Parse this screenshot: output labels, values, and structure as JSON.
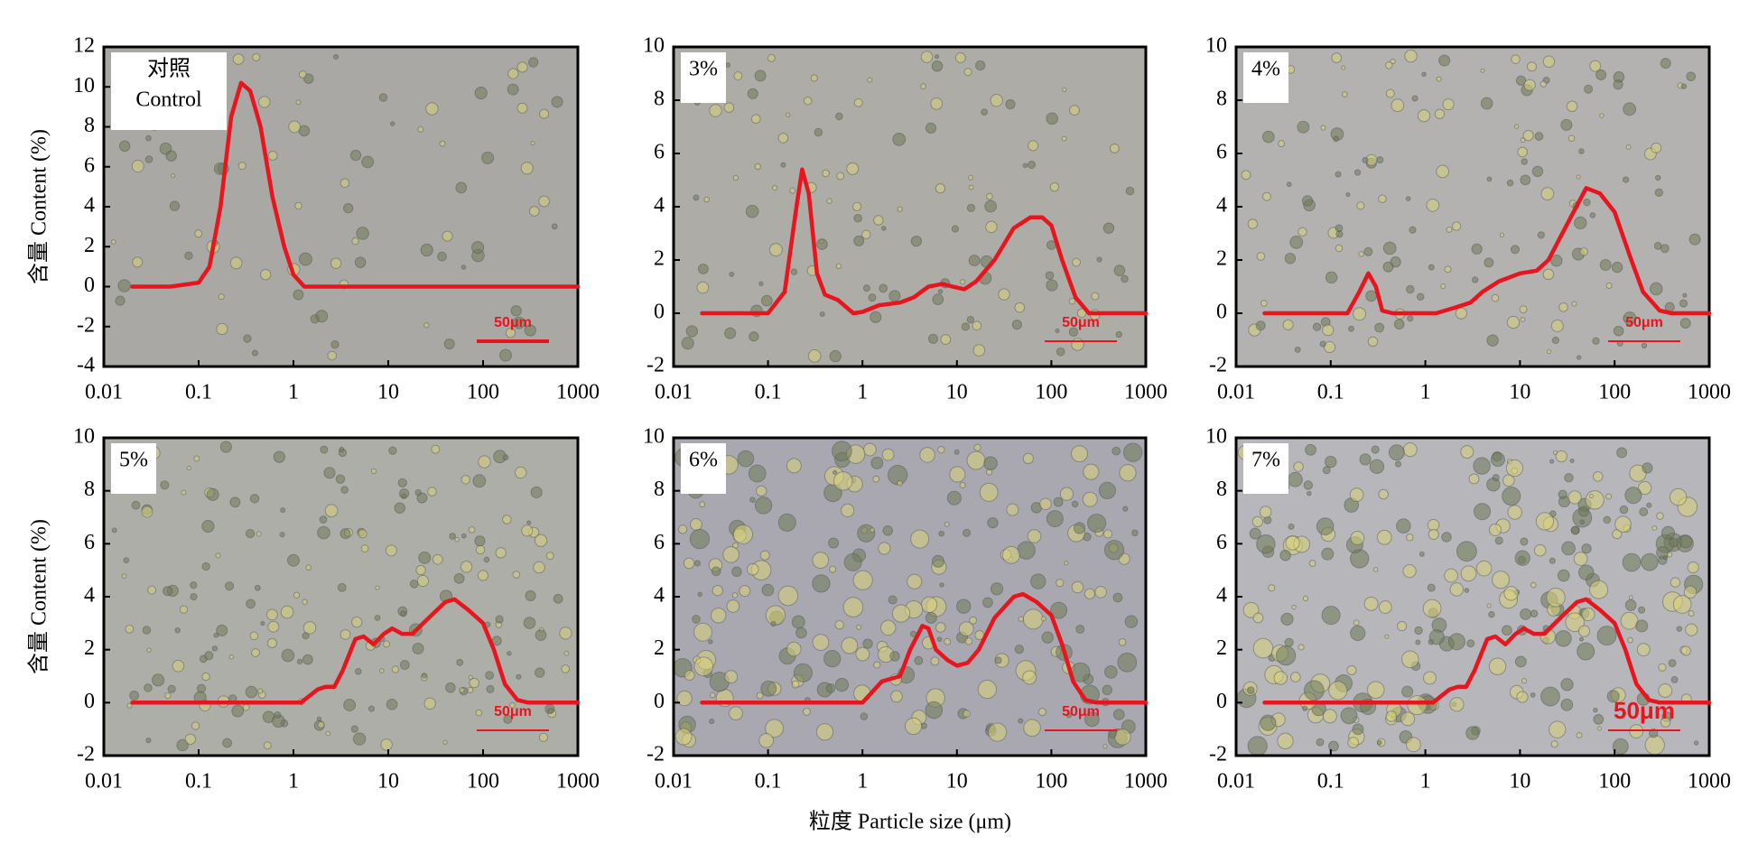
{
  "xlabel": "粒度 Particle size (μm)",
  "chart_data": [
    {
      "type": "line",
      "ylabel": "含量 Content (%)",
      "annotations": [
        "对照",
        "Control"
      ],
      "scale_bar": "50μm",
      "color": "#e8141e",
      "xscale": "log",
      "xlim": [
        0.01,
        1000
      ],
      "xticks": [
        0.01,
        0.1,
        1,
        10,
        100,
        1000
      ],
      "ylim": [
        -4,
        12
      ],
      "yticks": [
        -4,
        -2,
        0,
        2,
        4,
        6,
        8,
        10,
        12
      ],
      "x": [
        0.02,
        0.05,
        0.1,
        0.13,
        0.17,
        0.22,
        0.28,
        0.35,
        0.45,
        0.6,
        0.8,
        1.0,
        1.3,
        10,
        100,
        1000
      ],
      "values": [
        0,
        0,
        0.2,
        1,
        4,
        8.5,
        10.2,
        9.8,
        8,
        4.5,
        2,
        0.6,
        0,
        0,
        0,
        0
      ]
    },
    {
      "type": "line",
      "annotations": [
        "3%"
      ],
      "scale_bar": "50μm",
      "color": "#e8141e",
      "xscale": "log",
      "xlim": [
        0.01,
        1000
      ],
      "xticks": [
        0.01,
        0.1,
        1,
        10,
        100,
        1000
      ],
      "ylim": [
        -2,
        10
      ],
      "yticks": [
        -2,
        0,
        2,
        4,
        6,
        8,
        10
      ],
      "x": [
        0.02,
        0.1,
        0.15,
        0.2,
        0.23,
        0.27,
        0.33,
        0.4,
        0.55,
        0.8,
        1,
        1.5,
        2.5,
        3.5,
        5,
        7,
        9,
        12,
        16,
        25,
        40,
        60,
        80,
        100,
        130,
        180,
        250,
        1000
      ],
      "values": [
        0,
        0,
        0.8,
        4,
        5.4,
        4.5,
        1.5,
        0.7,
        0.5,
        0,
        0.05,
        0.3,
        0.4,
        0.6,
        1.0,
        1.1,
        1.0,
        0.9,
        1.2,
        2.0,
        3.2,
        3.6,
        3.6,
        3.3,
        2.0,
        0.6,
        0,
        0
      ]
    },
    {
      "type": "line",
      "annotations": [
        "4%"
      ],
      "scale_bar": "50μm",
      "color": "#e8141e",
      "xscale": "log",
      "xlim": [
        0.01,
        1000
      ],
      "xticks": [
        0.01,
        0.1,
        1,
        10,
        100,
        1000
      ],
      "ylim": [
        -2,
        10
      ],
      "yticks": [
        -2,
        0,
        2,
        4,
        6,
        8,
        10
      ],
      "x": [
        0.02,
        0.15,
        0.2,
        0.25,
        0.3,
        0.35,
        0.45,
        1.3,
        2,
        3,
        4,
        6,
        10,
        15,
        20,
        30,
        50,
        70,
        100,
        150,
        200,
        300,
        400,
        1000
      ],
      "values": [
        0,
        0,
        0.8,
        1.5,
        1.0,
        0.1,
        0,
        0,
        0.2,
        0.4,
        0.8,
        1.2,
        1.5,
        1.6,
        2.0,
        3.2,
        4.7,
        4.5,
        3.8,
        2.0,
        0.8,
        0.1,
        0,
        0
      ]
    },
    {
      "type": "line",
      "ylabel": "含量 Content (%)",
      "annotations": [
        "5%"
      ],
      "scale_bar": "50μm",
      "color": "#e8141e",
      "xscale": "log",
      "xlim": [
        0.01,
        1000
      ],
      "xticks": [
        0.01,
        0.1,
        1,
        10,
        100,
        1000
      ],
      "ylim": [
        -2,
        10
      ],
      "yticks": [
        -2,
        0,
        2,
        4,
        6,
        8,
        10
      ],
      "x": [
        0.02,
        1.2,
        1.8,
        2.2,
        2.7,
        3.3,
        4.5,
        5.5,
        7,
        9,
        11,
        14,
        18,
        25,
        40,
        50,
        70,
        100,
        130,
        170,
        230,
        300,
        1000
      ],
      "values": [
        0,
        0,
        0.5,
        0.6,
        0.6,
        1.2,
        2.4,
        2.5,
        2.2,
        2.6,
        2.8,
        2.6,
        2.6,
        3.1,
        3.8,
        3.9,
        3.5,
        3.0,
        2.0,
        0.7,
        0.1,
        0,
        0
      ]
    },
    {
      "type": "line",
      "annotations": [
        "6%"
      ],
      "scale_bar": "50μm",
      "color": "#e8141e",
      "xscale": "log",
      "xlim": [
        0.01,
        1000
      ],
      "xticks": [
        0.01,
        0.1,
        1,
        10,
        100,
        1000
      ],
      "ylim": [
        -2,
        10
      ],
      "yticks": [
        -2,
        0,
        2,
        4,
        6,
        8,
        10
      ],
      "x": [
        0.02,
        1,
        1.6,
        2,
        2.5,
        3.2,
        4.3,
        5,
        6,
        8,
        10,
        13,
        17,
        25,
        40,
        50,
        70,
        100,
        130,
        170,
        230,
        300,
        1000
      ],
      "values": [
        0,
        0,
        0.8,
        0.9,
        1.0,
        2.0,
        2.9,
        2.8,
        2.0,
        1.6,
        1.4,
        1.5,
        2.0,
        3.2,
        4.0,
        4.1,
        3.8,
        3.3,
        2.2,
        0.8,
        0.1,
        0,
        0
      ]
    },
    {
      "type": "line",
      "annotations": [
        "7%"
      ],
      "scale_bar": "50μm",
      "color": "#e8141e",
      "xscale": "log",
      "xlim": [
        0.01,
        1000
      ],
      "xticks": [
        0.01,
        0.1,
        1,
        10,
        100,
        1000
      ],
      "ylim": [
        -2,
        10
      ],
      "yticks": [
        -2,
        0,
        2,
        4,
        6,
        8,
        10
      ],
      "x": [
        0.02,
        1.2,
        1.8,
        2.2,
        2.7,
        3.3,
        4.5,
        5.5,
        7,
        9,
        11,
        14,
        18,
        25,
        40,
        50,
        70,
        100,
        130,
        170,
        230,
        300,
        1000
      ],
      "values": [
        0,
        0,
        0.5,
        0.6,
        0.6,
        1.2,
        2.4,
        2.5,
        2.2,
        2.6,
        2.8,
        2.6,
        2.6,
        3.1,
        3.8,
        3.9,
        3.5,
        3.0,
        2.0,
        0.7,
        0.1,
        0,
        0
      ]
    }
  ]
}
